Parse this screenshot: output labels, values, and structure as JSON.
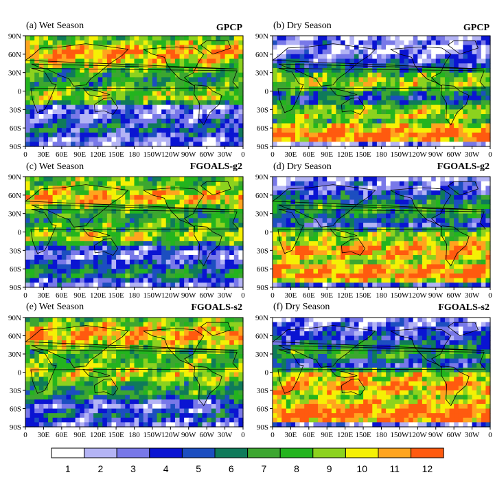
{
  "chart_data": [
    {
      "type": "heatmap",
      "title": "(a) Wet Season",
      "source": "GPCP",
      "xticks": [
        "0",
        "30E",
        "60E",
        "90E",
        "120E",
        "150E",
        "180",
        "150W",
        "120W",
        "90W",
        "60W",
        "30W",
        "0"
      ],
      "yticks": [
        "90N",
        "60N",
        "30N",
        "0",
        "30S",
        "60S",
        "90S"
      ],
      "zonal_profile": [
        8,
        9,
        10,
        11,
        11,
        10,
        9,
        8,
        7,
        7,
        7,
        8,
        9,
        9,
        7,
        3,
        3,
        3,
        4,
        5,
        5,
        4,
        3,
        3
      ]
    },
    {
      "type": "heatmap",
      "title": "(b) Dry Season",
      "source": "GPCP",
      "xticks": [
        "0",
        "30E",
        "60E",
        "90E",
        "120E",
        "150E",
        "180",
        "150W",
        "120W",
        "90W",
        "60W",
        "30W",
        "0"
      ],
      "yticks": [
        "90N",
        "60N",
        "30N",
        "0",
        "30S",
        "60S",
        "90S"
      ],
      "zonal_profile": [
        2,
        3,
        2,
        2,
        3,
        4,
        5,
        6,
        8,
        9,
        9,
        8,
        6,
        5,
        6,
        8,
        9,
        9,
        8,
        10,
        11,
        12,
        11,
        2
      ]
    },
    {
      "type": "heatmap",
      "title": "(c) Wet Season",
      "source": "FGOALS-g2",
      "xticks": [
        "0",
        "30E",
        "60E",
        "90E",
        "120E",
        "150E",
        "180",
        "150W",
        "120W",
        "90W",
        "60W",
        "30W",
        "0"
      ],
      "yticks": [
        "90N",
        "60N",
        "30N",
        "0",
        "30S",
        "60S",
        "90S"
      ],
      "zonal_profile": [
        8,
        8,
        9,
        10,
        11,
        10,
        8,
        7,
        7,
        7,
        8,
        8,
        9,
        9,
        7,
        4,
        3,
        3,
        4,
        5,
        6,
        6,
        4,
        3
      ]
    },
    {
      "type": "heatmap",
      "title": "(d) Dry Season",
      "source": "FGOALS-g2",
      "xticks": [
        "0",
        "30E",
        "60E",
        "90E",
        "120E",
        "150E",
        "180",
        "150W",
        "120W",
        "90W",
        "60W",
        "30W",
        "0"
      ],
      "yticks": [
        "90N",
        "60N",
        "30N",
        "0",
        "30S",
        "60S",
        "90S"
      ],
      "zonal_profile": [
        2,
        3,
        3,
        4,
        5,
        6,
        7,
        7,
        6,
        5,
        4,
        7,
        9,
        9,
        10,
        11,
        11,
        10,
        9,
        11,
        11,
        12,
        10,
        4
      ]
    },
    {
      "type": "heatmap",
      "title": "(e) Wet Season",
      "source": "FGOALS-s2",
      "xticks": [
        "0",
        "30E",
        "60E",
        "90E",
        "120E",
        "150E",
        "180",
        "150W",
        "120W",
        "90W",
        "60W",
        "30W",
        "0"
      ],
      "yticks": [
        "90N",
        "60N",
        "30N",
        "0",
        "30S",
        "60S",
        "90S"
      ],
      "zonal_profile": [
        8,
        9,
        10,
        11,
        11,
        10,
        9,
        8,
        8,
        8,
        8,
        9,
        9,
        9,
        8,
        7,
        7,
        6,
        4,
        3,
        4,
        5,
        4,
        3
      ]
    },
    {
      "type": "heatmap",
      "title": "(f) Dry Season",
      "source": "FGOALS-s2",
      "xticks": [
        "0",
        "30E",
        "60E",
        "90E",
        "120E",
        "150E",
        "180",
        "150W",
        "120W",
        "90W",
        "60W",
        "30W",
        "0"
      ],
      "yticks": [
        "90N",
        "60N",
        "30N",
        "0",
        "30S",
        "60S",
        "90S"
      ],
      "zonal_profile": [
        2,
        3,
        3,
        4,
        4,
        5,
        6,
        7,
        7,
        5,
        4,
        7,
        10,
        10,
        11,
        11,
        10,
        9,
        10,
        11,
        12,
        12,
        11,
        3
      ]
    }
  ],
  "colorbar": {
    "labels": [
      "1",
      "2",
      "3",
      "4",
      "5",
      "6",
      "7",
      "8",
      "9",
      "10",
      "11",
      "12"
    ],
    "colors": [
      "#ffffff",
      "#b4b4f5",
      "#7878e8",
      "#0a14d2",
      "#1c4ec0",
      "#0f7a5a",
      "#3ca630",
      "#23b41e",
      "#8cd21e",
      "#f5f005",
      "#ffa41e",
      "#ff5a0f"
    ]
  }
}
